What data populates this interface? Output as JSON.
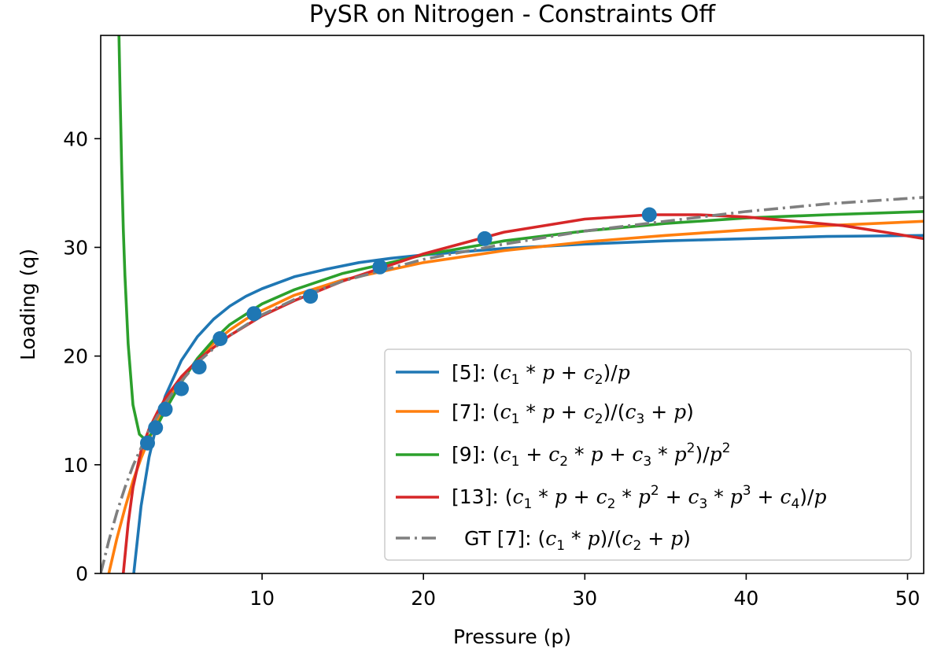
{
  "chart_data": {
    "type": "line",
    "title": "PySR on Nitrogen - Constraints Off",
    "xlabel": "Pressure (p)",
    "ylabel": "Loading (q)",
    "xlim": [
      0,
      51
    ],
    "ylim": [
      0,
      49.5
    ],
    "xticks": [
      10,
      20,
      30,
      40,
      50
    ],
    "yticks": [
      0,
      10,
      20,
      30,
      40
    ],
    "grid": false,
    "legend_position": "lower-right",
    "points": {
      "color": "#1f77b4",
      "x": [
        2.9,
        3.4,
        4.0,
        5.0,
        6.1,
        7.4,
        9.5,
        13.0,
        17.3,
        23.8,
        34.0
      ],
      "y": [
        12.0,
        13.4,
        15.1,
        17.0,
        19.0,
        21.6,
        23.9,
        25.5,
        28.2,
        30.8,
        33.0
      ]
    },
    "series": [
      {
        "label_prefix": "[5]: ",
        "color": "#1f77b4",
        "dash": "solid",
        "x": [
          2.05,
          2.5,
          3,
          3.5,
          4,
          5,
          6,
          7,
          8,
          9,
          10,
          12,
          14,
          16,
          18,
          20,
          25,
          30,
          35,
          40,
          45,
          51
        ],
        "y": [
          0.0,
          6.2,
          10.7,
          13.9,
          16.3,
          19.6,
          21.8,
          23.4,
          24.6,
          25.5,
          26.2,
          27.3,
          28.0,
          28.6,
          29.0,
          29.3,
          29.9,
          30.3,
          30.6,
          30.8,
          31.0,
          31.1
        ]
      },
      {
        "label_prefix": "[7]: ",
        "color": "#ff7f0e",
        "dash": "solid",
        "x": [
          0.5,
          1,
          1.5,
          2,
          2.5,
          3,
          4,
          5,
          6,
          7,
          8,
          9,
          10,
          12,
          15,
          20,
          25,
          30,
          35,
          40,
          45,
          51
        ],
        "y": [
          0.0,
          3.2,
          6.0,
          8.5,
          10.6,
          12.4,
          15.5,
          17.9,
          19.7,
          21.2,
          22.4,
          23.4,
          24.2,
          25.6,
          27.0,
          28.6,
          29.7,
          30.5,
          31.1,
          31.6,
          32.0,
          32.4
        ]
      },
      {
        "label_prefix": "[9]: ",
        "color": "#2ca02c",
        "dash": "solid",
        "x": [
          1.13,
          1.2,
          1.3,
          1.4,
          1.5,
          1.7,
          2,
          2.4,
          2.7,
          3,
          3.5,
          4,
          5,
          6,
          7,
          8,
          10,
          12,
          15,
          20,
          25,
          30,
          35,
          40,
          45,
          51
        ],
        "y": [
          49.5,
          44.3,
          37.2,
          31.7,
          27.4,
          21.1,
          15.5,
          12.8,
          12.4,
          12.6,
          13.6,
          15.0,
          17.6,
          19.8,
          21.5,
          22.9,
          24.8,
          26.1,
          27.6,
          29.3,
          30.6,
          31.5,
          32.2,
          32.7,
          33.0,
          33.3
        ]
      },
      {
        "label_prefix": "[13]: ",
        "color": "#d62728",
        "dash": "solid",
        "x": [
          1.4,
          1.7,
          2,
          2.5,
          3,
          3.5,
          4,
          5,
          6,
          7,
          8,
          10,
          12,
          15,
          18,
          20,
          25,
          30,
          34,
          37,
          40,
          43,
          46,
          49,
          51
        ],
        "y": [
          0.0,
          4.6,
          7.9,
          11.3,
          13.3,
          14.8,
          16.1,
          18.1,
          19.6,
          20.8,
          21.9,
          23.7,
          25.1,
          26.9,
          28.4,
          29.4,
          31.4,
          32.6,
          33.0,
          33.0,
          32.8,
          32.4,
          32.0,
          31.3,
          30.8
        ]
      },
      {
        "label_prefix": "GT [7]: ",
        "color": "#7f7f7f",
        "dash": "dashdot",
        "x": [
          0,
          0.5,
          1,
          1.5,
          2,
          3,
          4,
          5,
          6,
          7,
          8,
          10,
          12,
          15,
          20,
          25,
          30,
          35,
          40,
          45,
          51
        ],
        "y": [
          0.0,
          3.0,
          5.6,
          7.9,
          9.9,
          13.2,
          15.7,
          17.7,
          19.4,
          20.7,
          21.9,
          23.8,
          25.2,
          26.9,
          28.9,
          30.3,
          31.5,
          32.4,
          33.3,
          34.0,
          34.6
        ]
      }
    ]
  }
}
